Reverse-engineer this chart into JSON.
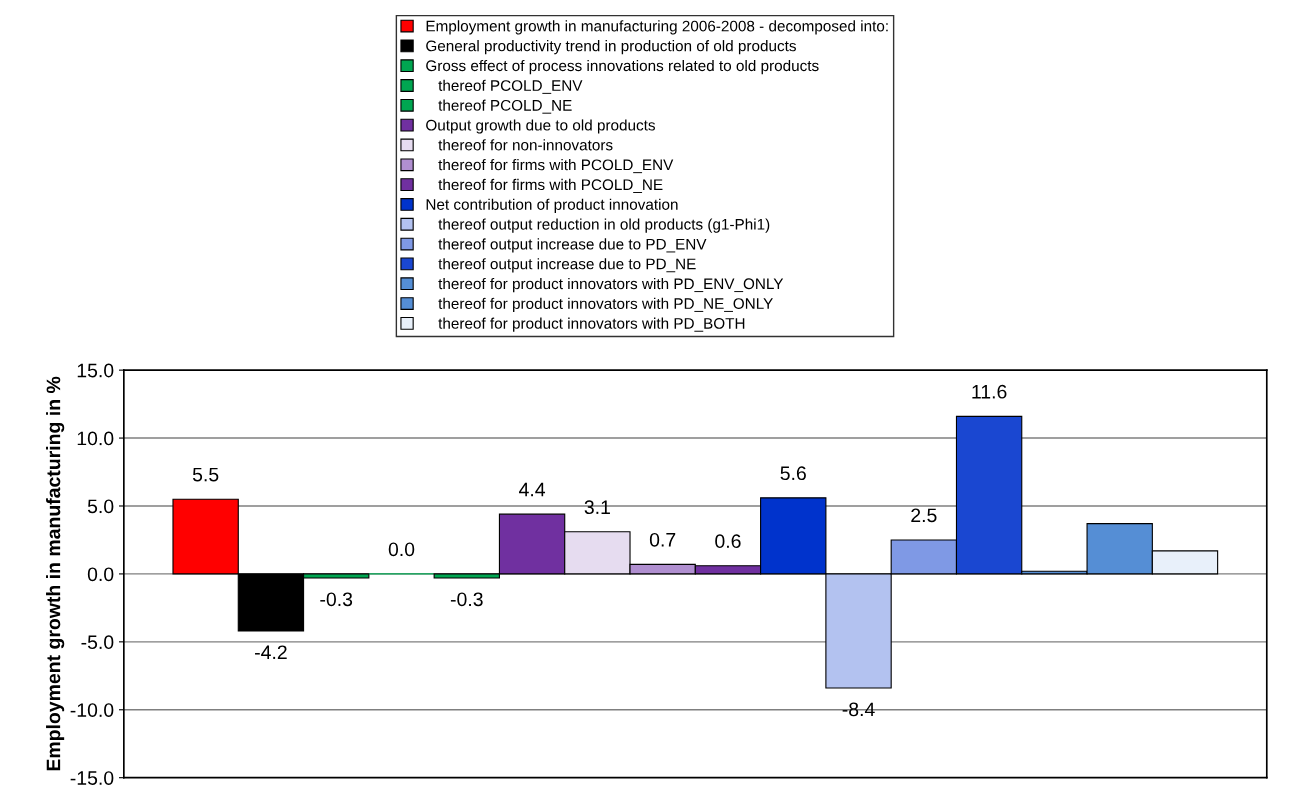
{
  "chart_data": {
    "type": "bar",
    "ylabel": "Employment growth in manufacturing in %",
    "categories": [
      null
    ],
    "ylim": [
      -15,
      15
    ],
    "yticks": [
      {
        "value": -15,
        "label": "-15.0"
      },
      {
        "value": -10,
        "label": "-10.0"
      },
      {
        "value": -5,
        "label": "-5.0"
      },
      {
        "value": 0,
        "label": "0.0"
      },
      {
        "value": 5,
        "label": "5.0"
      },
      {
        "value": 10,
        "label": "10.0"
      },
      {
        "value": 15,
        "label": "15.0"
      }
    ],
    "grid": "y",
    "legend": "top",
    "series": [
      {
        "name": "Employment growth in manufacturing 2006-2008 - decomposed into:",
        "color": "#ff0000",
        "values": [
          5.5
        ],
        "value_labels": [
          "5.5"
        ]
      },
      {
        "name": "General productivity trend in production of old products",
        "color": "#000000",
        "values": [
          -4.2
        ],
        "value_labels": [
          "-4.2"
        ]
      },
      {
        "name": "Gross effect of process innovations related to old products",
        "color": "#00a651",
        "values": [
          -0.3
        ],
        "value_labels": [
          "-0.3"
        ]
      },
      {
        "name": "   thereof PCOLD_ENV",
        "color": "#00a651",
        "values": [
          0.0
        ],
        "value_labels": [
          "0.0"
        ]
      },
      {
        "name": "   thereof PCOLD_NE",
        "color": "#00a651",
        "values": [
          -0.3
        ],
        "value_labels": [
          "-0.3"
        ]
      },
      {
        "name": "Output growth due to old products",
        "color": "#7030a0",
        "values": [
          4.4
        ],
        "value_labels": [
          "4.4"
        ]
      },
      {
        "name": "   thereof for non-innovators",
        "color": "#e6dcf0",
        "values": [
          3.1
        ],
        "value_labels": [
          "3.1"
        ]
      },
      {
        "name": "   thereof for firms with PCOLD_ENV",
        "color": "#b08fd0",
        "values": [
          0.7
        ],
        "value_labels": [
          "0.7"
        ]
      },
      {
        "name": "   thereof for firms with PCOLD_NE",
        "color": "#7030a0",
        "values": [
          0.6
        ],
        "value_labels": [
          "0.6"
        ]
      },
      {
        "name": "Net contribution of product innovation",
        "color": "#0033cc",
        "values": [
          5.6
        ],
        "value_labels": [
          "5.6"
        ]
      },
      {
        "name": "   thereof output reduction in old products (g1-Phi1)",
        "color": "#b3c2f0",
        "values": [
          -8.4
        ],
        "value_labels": [
          "-8.4"
        ]
      },
      {
        "name": "   thereof output increase due to PD_ENV",
        "color": "#7f99e5",
        "values": [
          2.5
        ],
        "value_labels": [
          "2.5"
        ]
      },
      {
        "name": "   thereof output increase due to PD_NE",
        "color": "#1a47d1",
        "values": [
          11.6
        ],
        "value_labels": [
          "11.6"
        ]
      },
      {
        "name": "   thereof for product innovators with PD_ENV_ONLY",
        "color": "#558ed5",
        "values": [
          0.2
        ],
        "value_labels": [
          null
        ]
      },
      {
        "name": "   thereof for product innovators with PD_NE_ONLY",
        "color": "#558ed5",
        "values": [
          3.7
        ],
        "value_labels": [
          null
        ]
      },
      {
        "name": "   thereof for product innovators with PD_BOTH",
        "color": "#e8f0fa",
        "values": [
          1.7
        ],
        "value_labels": [
          null
        ]
      }
    ]
  }
}
